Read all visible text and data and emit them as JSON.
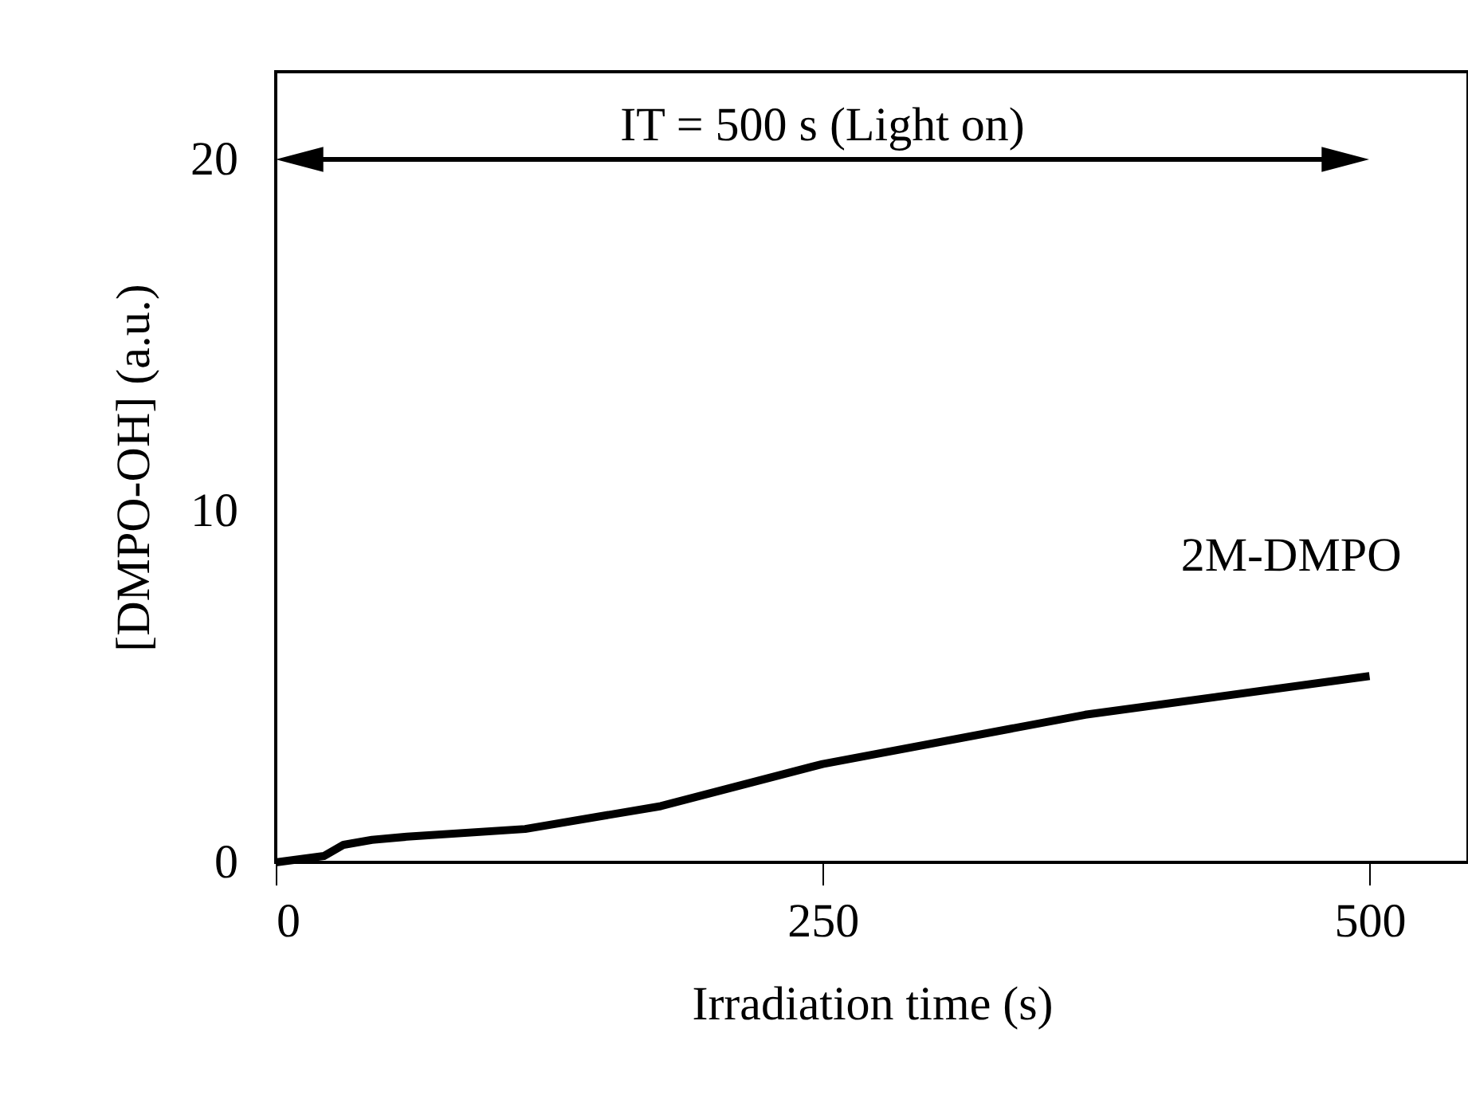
{
  "chart_data": {
    "type": "line",
    "xlabel": "Irradiation time (s)",
    "ylabel": "[DMPO-OH] (a.u.)",
    "x": [
      0,
      22,
      31,
      44,
      60,
      114,
      176,
      250,
      370,
      500
    ],
    "series": [
      {
        "name": "2M-DMPO",
        "color": "#000000",
        "values": [
          0,
          0.18,
          0.5,
          0.64,
          0.73,
          0.95,
          1.6,
          2.8,
          4.2,
          5.3
        ]
      }
    ],
    "annotations": [
      "IT = 500 s  (Light on)"
    ],
    "xlim": [
      0,
      545
    ],
    "ylim": [
      0,
      22.5
    ],
    "xticks": [
      0,
      250,
      500
    ],
    "yticks": [
      0,
      10,
      20
    ],
    "grid": false,
    "marker": "none",
    "line_style": "solid"
  }
}
